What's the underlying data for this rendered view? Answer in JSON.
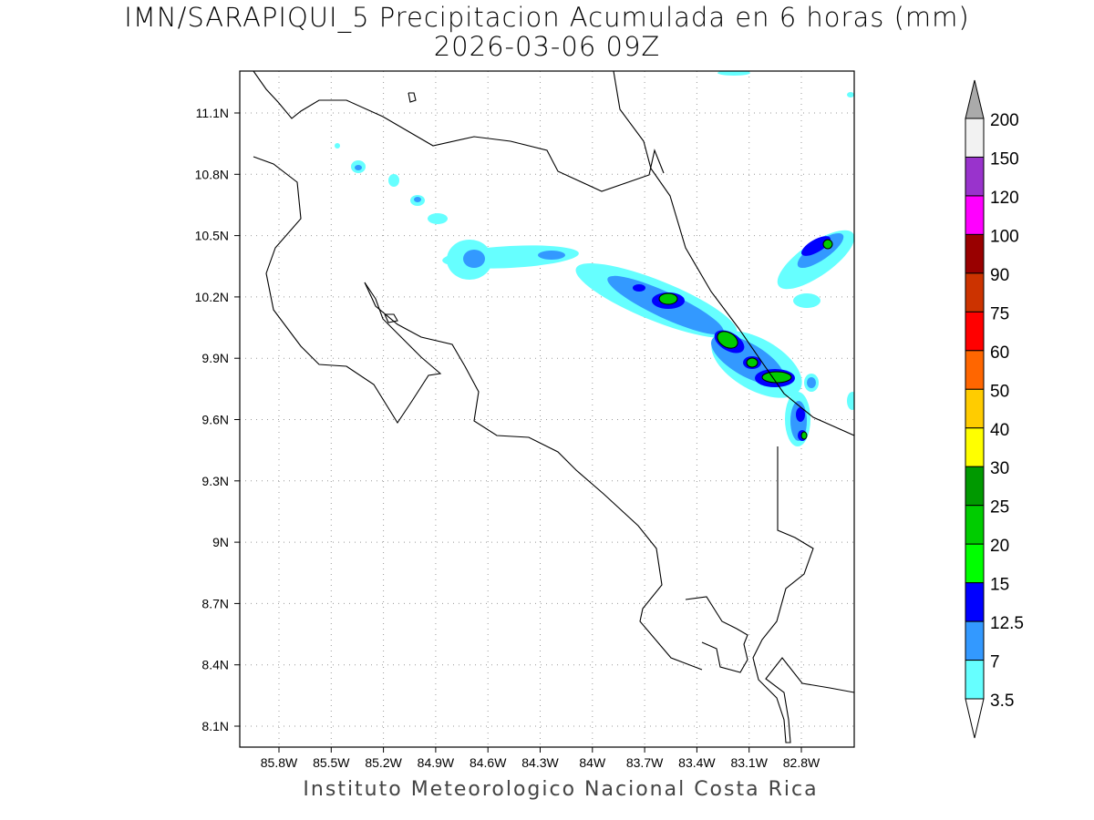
{
  "title": "IMN/SARAPIQUI_5 Precipitacion Acumulada en 6 horas (mm)",
  "subtitle": "2026-03-06 09Z",
  "footer": "Instituto Meteorologico Nacional Costa Rica",
  "lon_ticks": [
    "85.8W",
    "85.5W",
    "85.2W",
    "84.9W",
    "84.6W",
    "84.3W",
    "84W",
    "83.7W",
    "83.4W",
    "83.1W",
    "82.8W"
  ],
  "lat_ticks": [
    "11.1N",
    "10.8N",
    "10.5N",
    "10.2N",
    "9.9N",
    "9.6N",
    "9.3N",
    "9N",
    "8.7N",
    "8.4N",
    "8.1N"
  ],
  "colorbar": {
    "labels": [
      "200",
      "150",
      "120",
      "100",
      "90",
      "75",
      "60",
      "50",
      "40",
      "30",
      "25",
      "20",
      "15",
      "12.5",
      "7",
      "3.5"
    ],
    "colors": [
      "#f2f2f2",
      "#9933cc",
      "#ff00ff",
      "#990000",
      "#cc3300",
      "#ff0000",
      "#ff6600",
      "#ffcc00",
      "#ffff00",
      "#009900",
      "#00cc00",
      "#00ff00",
      "#0000ff",
      "#3399ff",
      "#66ffff"
    ],
    "over_color": "#aaaaaa",
    "under_color": "#ffffff"
  }
}
